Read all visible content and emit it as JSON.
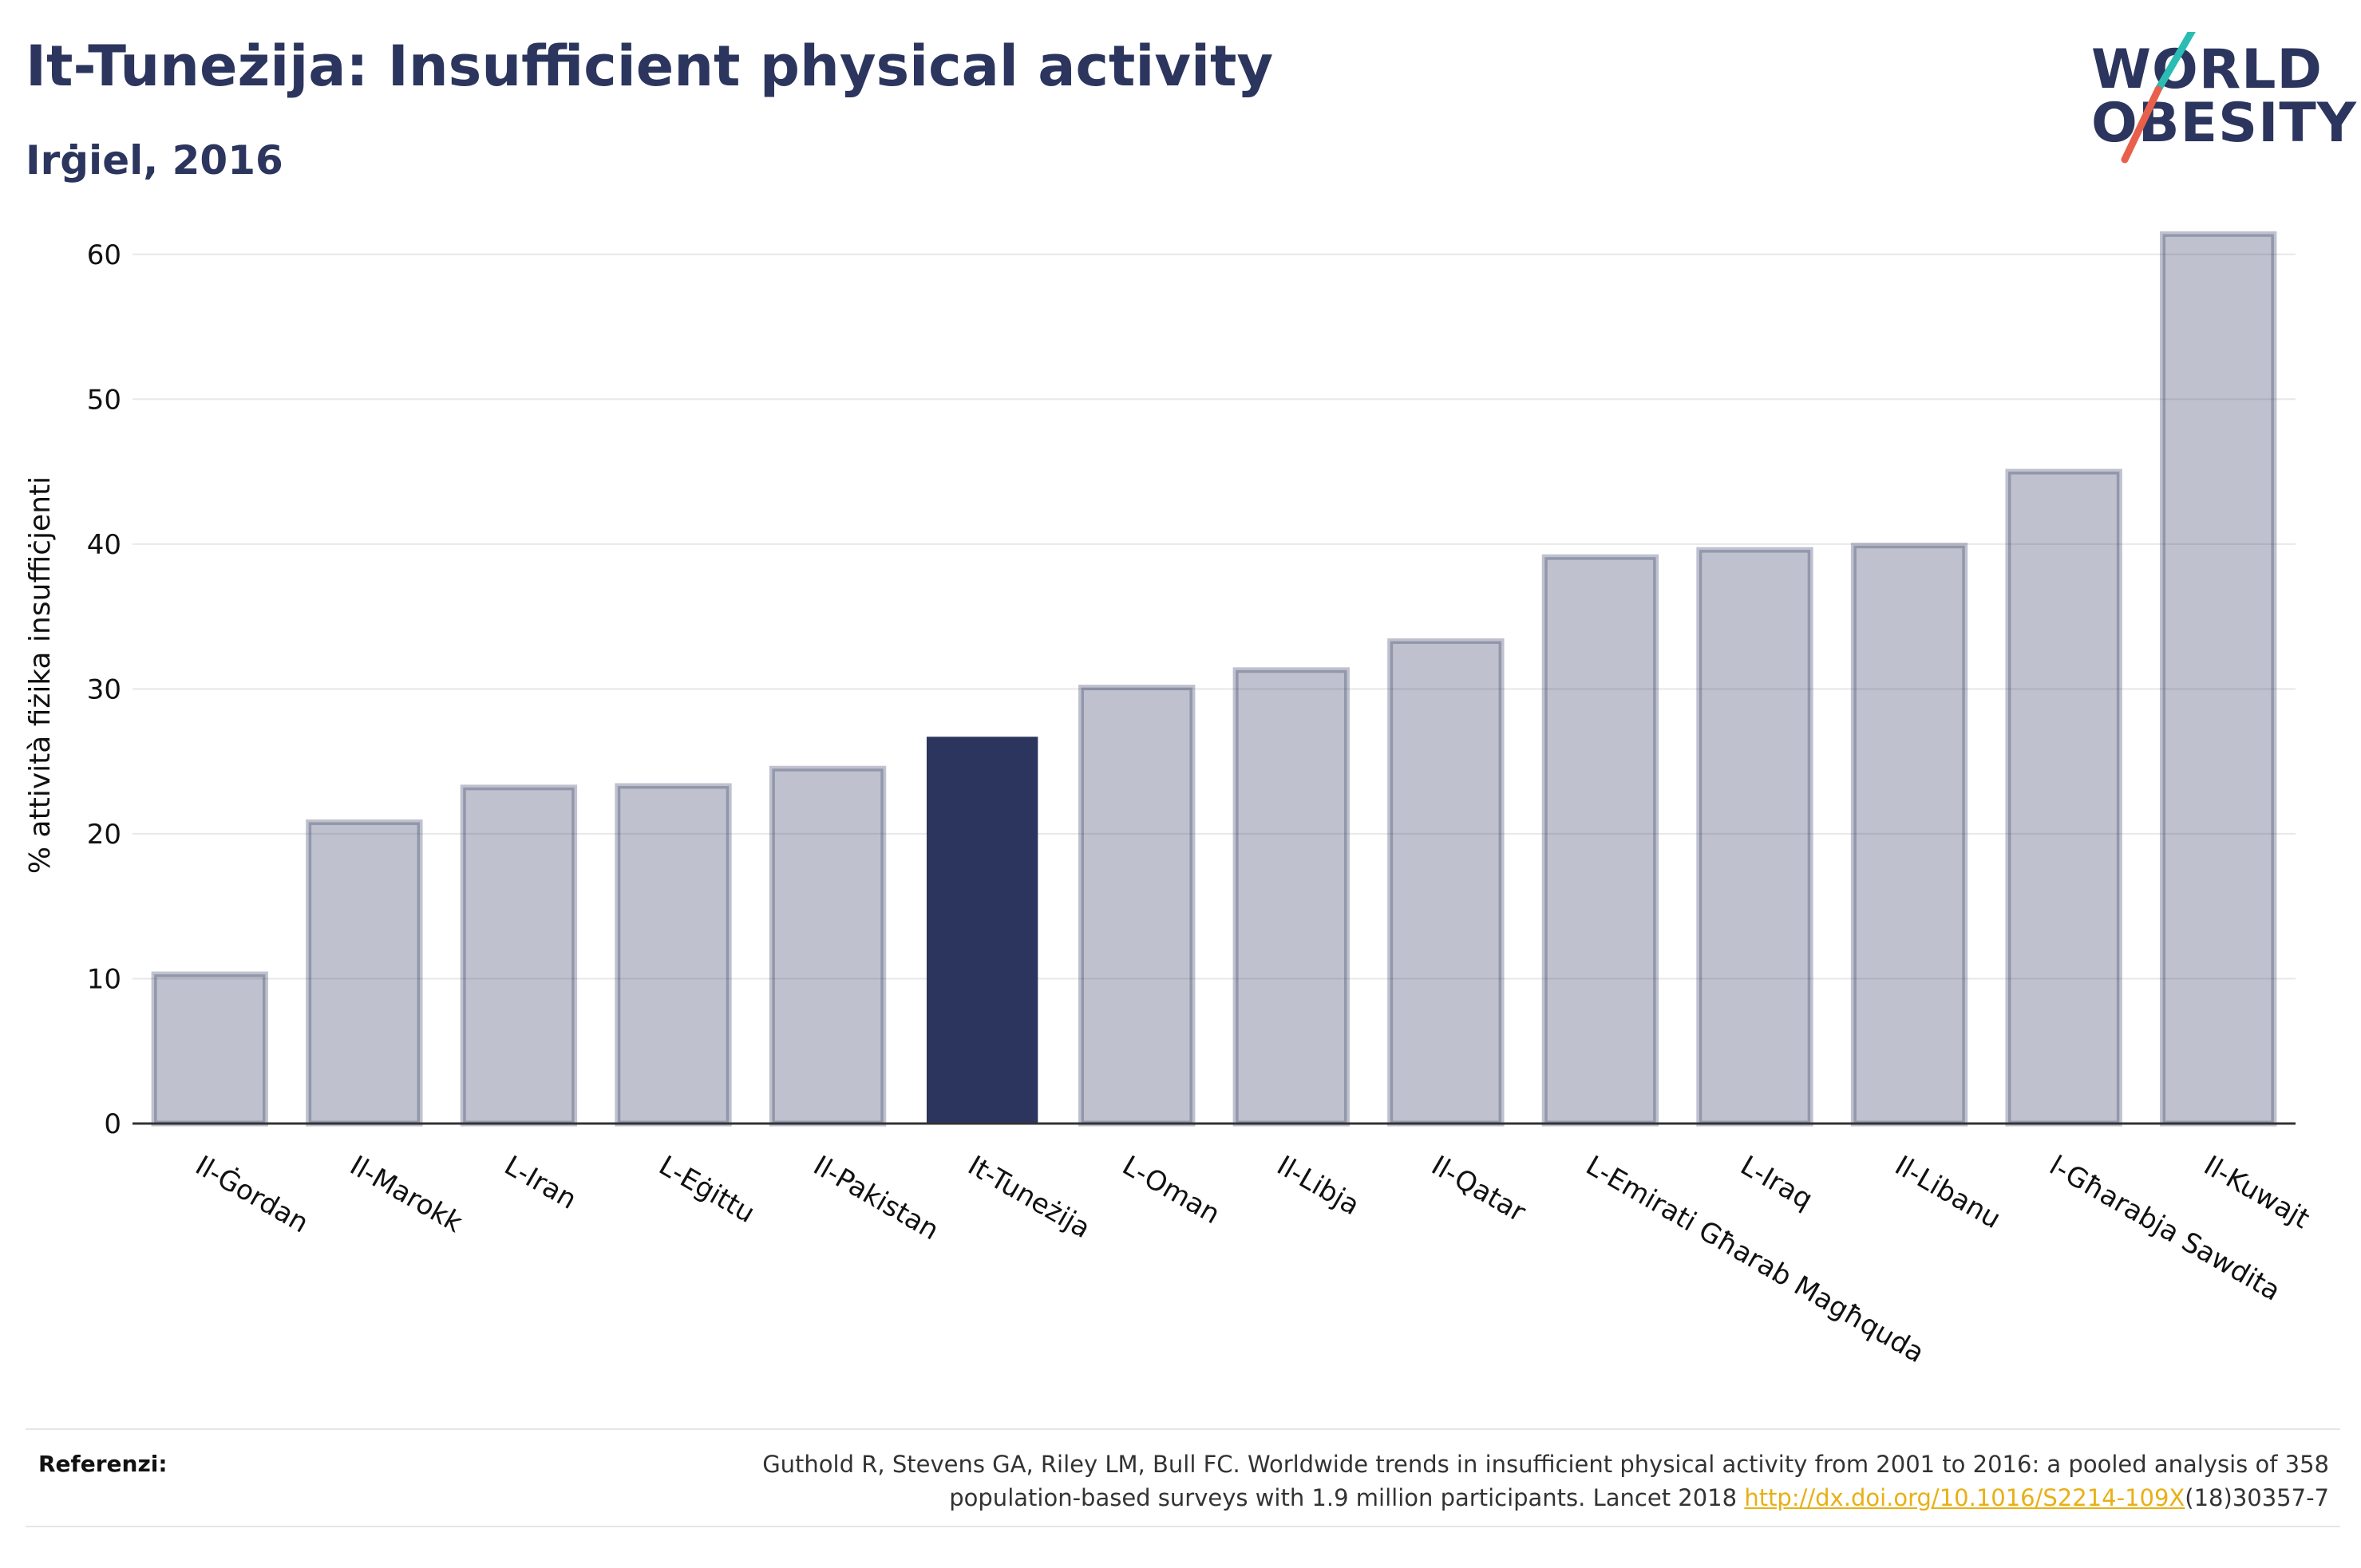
{
  "header": {
    "title": "It-Tuneżija: Insufficient physical activity",
    "subtitle": "Irġiel, 2016"
  },
  "logo": {
    "line1": "WORLD",
    "line2": "OBESITY",
    "accent_colors": [
      "#2bbdb3",
      "#e8604c"
    ]
  },
  "chart_data": {
    "type": "bar",
    "title": "It-Tuneżija: Insufficient physical activity",
    "subtitle": "Irġiel, 2016",
    "ylabel": "% attività fiżika insuffiċjenti",
    "ylim": [
      0,
      65
    ],
    "yticks": [
      0,
      10,
      20,
      30,
      40,
      50,
      60
    ],
    "grid": true,
    "categories": [
      "Il-Ġordan",
      "Il-Marokk",
      "L-Iran",
      "L-Eġittu",
      "Il-Pakistan",
      "It-Tuneżija",
      "L-Oman",
      "Il-Libja",
      "Il-Qatar",
      "L-Emirati Għarab Magħquda",
      "L-Iraq",
      "Il-Libanu",
      "l-Għarabja Sawdita",
      "Il-Kuwajt"
    ],
    "values": [
      10.3,
      20.8,
      23.2,
      23.3,
      24.5,
      26.7,
      30.1,
      31.3,
      33.3,
      39.1,
      39.6,
      39.9,
      45.0,
      61.4
    ],
    "highlight": "It-Tuneżija",
    "colors": {
      "bar": "#2b355e",
      "highlight": "#2b355e"
    }
  },
  "footer": {
    "label": "Referenzi:",
    "line1": "Guthold R, Stevens GA, Riley LM, Bull FC. Worldwide trends in insufficient physical activity from 2001 to 2016: a pooled analysis of 358",
    "line2_pre": "population-based surveys with 1.9 million participants. Lancet 2018 ",
    "link": "http://dx.doi.org/10.1016/S2214-109X",
    "line2_post": "(18)30357-7"
  }
}
